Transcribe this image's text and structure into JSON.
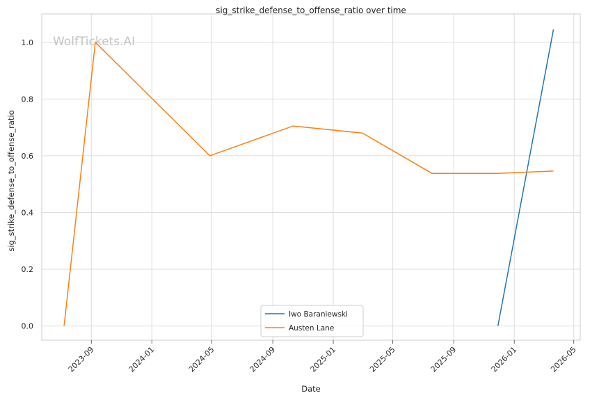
{
  "chart_data": {
    "type": "line",
    "title": "sig_strike_defense_to_offense_ratio over time",
    "xlabel": "Date",
    "ylabel": "sig_strike_defense_to_offense_ratio",
    "watermark": "WolfTickets.AI",
    "x_ticks": [
      "2023-09",
      "2024-01",
      "2024-05",
      "2024-09",
      "2025-01",
      "2025-05",
      "2025-09",
      "2026-01",
      "2026-05"
    ],
    "y_ticks": [
      "0.0",
      "0.2",
      "0.4",
      "0.6",
      "0.8",
      "1.0"
    ],
    "xlim": [
      "2023-05-24",
      "2026-05-14"
    ],
    "ylim": [
      -0.05,
      1.1
    ],
    "grid": true,
    "legend_position": "bottom-center",
    "series": [
      {
        "name": "Iwo Baraniewski",
        "color": "#1f77b4",
        "x": [
          "2025-11-29",
          "2026-03-21"
        ],
        "y": [
          0.0,
          1.045
        ]
      },
      {
        "name": "Austen Lane",
        "color": "#ff7f0e",
        "x": [
          "2023-07-08",
          "2023-09-09",
          "2024-04-27",
          "2024-10-12",
          "2025-03-01",
          "2025-07-19",
          "2025-11-29",
          "2026-03-21"
        ],
        "y": [
          0.0,
          1.0,
          0.6,
          0.705,
          0.68,
          0.538,
          0.538,
          0.546
        ]
      }
    ]
  }
}
